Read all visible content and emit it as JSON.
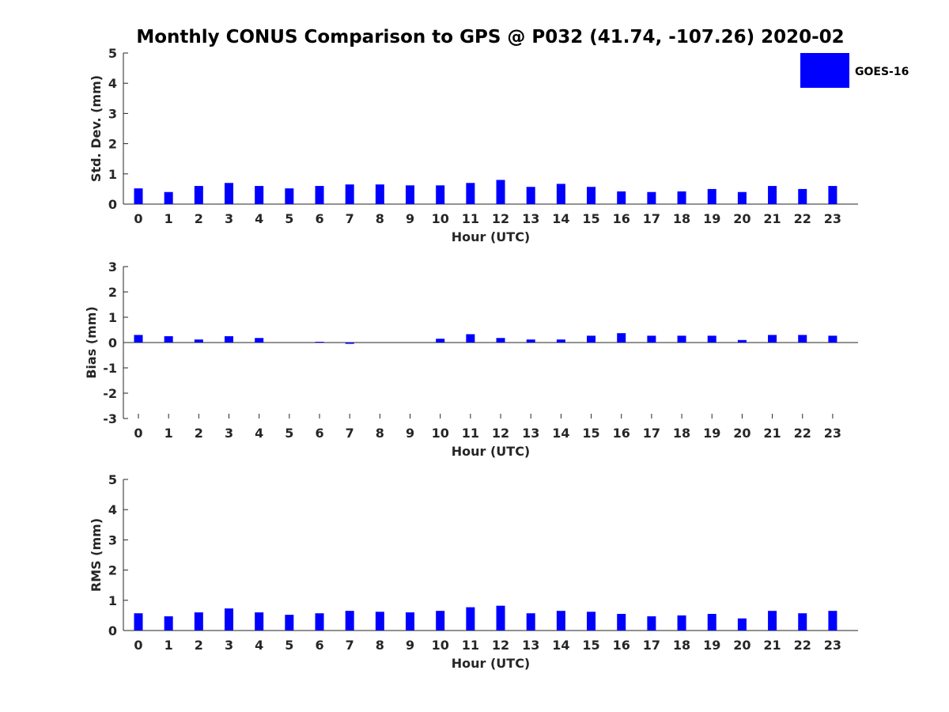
{
  "title": "Monthly CONUS Comparison to GPS @ P032 (41.74, -107.26) 2020-02",
  "legend": {
    "label": "GOES-16",
    "color": "#0000ff"
  },
  "chart_data": [
    {
      "type": "bar",
      "categories": [
        "0",
        "1",
        "2",
        "3",
        "4",
        "5",
        "6",
        "7",
        "8",
        "9",
        "10",
        "11",
        "12",
        "13",
        "14",
        "15",
        "16",
        "17",
        "18",
        "19",
        "20",
        "21",
        "22",
        "23"
      ],
      "series": [
        {
          "name": "GOES-16",
          "values": [
            0.52,
            0.4,
            0.6,
            0.7,
            0.6,
            0.52,
            0.6,
            0.65,
            0.65,
            0.62,
            0.62,
            0.7,
            0.8,
            0.57,
            0.67,
            0.57,
            0.42,
            0.4,
            0.42,
            0.5,
            0.4,
            0.6,
            0.5,
            0.6
          ]
        }
      ],
      "xlabel": "Hour (UTC)",
      "ylabel": "Std. Dev. (mm)",
      "ylim": [
        0,
        5
      ],
      "yticks": [
        "0",
        "1",
        "2",
        "3",
        "4",
        "5"
      ]
    },
    {
      "type": "bar",
      "categories": [
        "0",
        "1",
        "2",
        "3",
        "4",
        "5",
        "6",
        "7",
        "8",
        "9",
        "10",
        "11",
        "12",
        "13",
        "14",
        "15",
        "16",
        "17",
        "18",
        "19",
        "20",
        "21",
        "22",
        "23"
      ],
      "series": [
        {
          "name": "GOES-16",
          "values": [
            0.3,
            0.25,
            0.12,
            0.25,
            0.18,
            0.0,
            0.03,
            -0.05,
            0.0,
            0.0,
            0.15,
            0.33,
            0.18,
            0.12,
            0.12,
            0.27,
            0.37,
            0.27,
            0.27,
            0.27,
            0.1,
            0.3,
            0.3,
            0.27
          ]
        }
      ],
      "xlabel": "Hour (UTC)",
      "ylabel": "Bias (mm)",
      "ylim": [
        -3,
        3
      ],
      "yticks": [
        "-3",
        "-2",
        "-1",
        "0",
        "1",
        "2",
        "3"
      ]
    },
    {
      "type": "bar",
      "categories": [
        "0",
        "1",
        "2",
        "3",
        "4",
        "5",
        "6",
        "7",
        "8",
        "9",
        "10",
        "11",
        "12",
        "13",
        "14",
        "15",
        "16",
        "17",
        "18",
        "19",
        "20",
        "21",
        "22",
        "23"
      ],
      "series": [
        {
          "name": "GOES-16",
          "values": [
            0.57,
            0.47,
            0.6,
            0.73,
            0.6,
            0.52,
            0.57,
            0.65,
            0.62,
            0.6,
            0.65,
            0.77,
            0.82,
            0.57,
            0.65,
            0.62,
            0.55,
            0.47,
            0.5,
            0.55,
            0.4,
            0.65,
            0.57,
            0.65
          ]
        }
      ],
      "xlabel": "Hour (UTC)",
      "ylabel": "RMS (mm)",
      "ylim": [
        0,
        5
      ],
      "yticks": [
        "0",
        "1",
        "2",
        "3",
        "4",
        "5"
      ]
    }
  ]
}
